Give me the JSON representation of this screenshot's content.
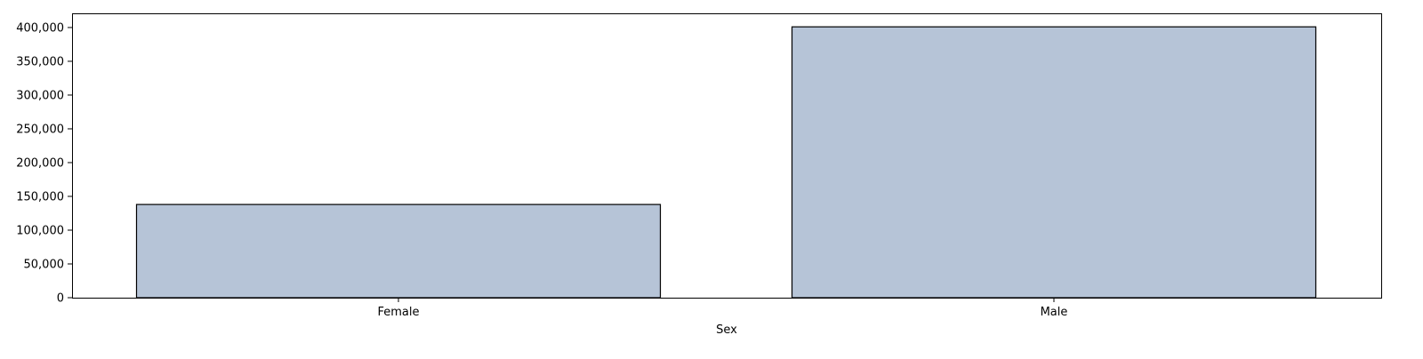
{
  "chart_data": {
    "type": "bar",
    "categories": [
      "Female",
      "Male"
    ],
    "values": [
      138000,
      401000
    ],
    "xlabel": "Sex",
    "ylabel": "",
    "ylim": [
      0,
      421000
    ],
    "yticks": [
      0,
      50000,
      100000,
      150000,
      200000,
      250000,
      300000,
      350000,
      400000
    ],
    "ytick_labels": [
      "0",
      "50,000",
      "100,000",
      "150,000",
      "200,000",
      "250,000",
      "300,000",
      "350,000",
      "400,000"
    ],
    "grid": false,
    "bar_color": "#b6c4d7",
    "edge_color": "#000000"
  }
}
